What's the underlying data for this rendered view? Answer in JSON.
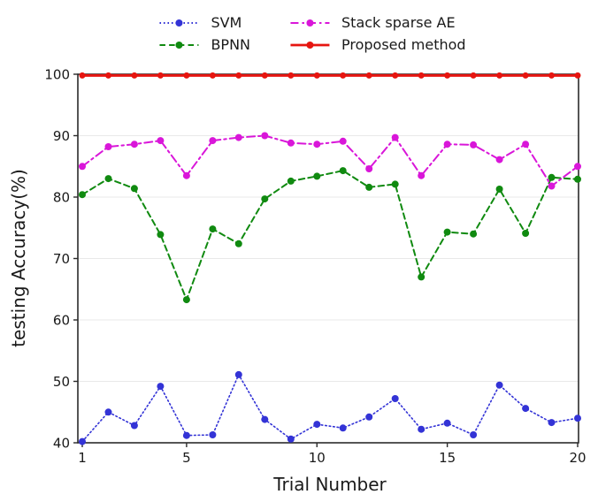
{
  "figure": {
    "background": "#ffffff"
  },
  "legend": {
    "position": "top-center",
    "items": [
      {
        "label": "SVM",
        "color": "#3333d6",
        "style": "dotted"
      },
      {
        "label": "BPNN",
        "color": "#108a10",
        "style": "dashed"
      },
      {
        "label": "Stack sparse AE",
        "color": "#d916d9",
        "style": "dashdot"
      },
      {
        "label": "Proposed method",
        "color": "#e61510",
        "style": "solid"
      }
    ]
  },
  "chart_data": {
    "type": "line",
    "title": "",
    "xlabel": "Trial Number",
    "ylabel": "testing Accuracy(%)",
    "xlim": [
      1,
      20
    ],
    "ylim": [
      40,
      100
    ],
    "xticks": [
      1,
      5,
      10,
      15,
      20
    ],
    "yticks": [
      40,
      50,
      60,
      70,
      80,
      90,
      100
    ],
    "grid": "horizontal",
    "grid_color": "#e9e9e9",
    "spine_color": "#2b2b2b",
    "legend_position": "top-center",
    "x": [
      1,
      2,
      3,
      4,
      5,
      6,
      7,
      8,
      9,
      10,
      11,
      12,
      13,
      14,
      15,
      16,
      17,
      18,
      19,
      20
    ],
    "series": [
      {
        "name": "SVM",
        "color": "#3333d6",
        "linestyle": "dotted",
        "linewidth": 1.6,
        "marker": "circle",
        "marker_size": 4,
        "values": [
          40.2,
          45.0,
          42.8,
          49.2,
          41.2,
          41.3,
          51.1,
          43.8,
          40.6,
          43.0,
          42.4,
          44.2,
          47.2,
          42.2,
          43.2,
          41.3,
          49.4,
          45.6,
          43.3,
          44.0
        ]
      },
      {
        "name": "BPNN",
        "color": "#108a10",
        "linestyle": "dashed",
        "linewidth": 2,
        "marker": "circle",
        "marker_size": 4,
        "values": [
          80.4,
          83.0,
          81.4,
          73.9,
          63.3,
          74.8,
          72.4,
          79.7,
          82.6,
          83.4,
          84.3,
          81.6,
          82.1,
          67.0,
          74.3,
          74.0,
          81.3,
          74.1,
          83.2,
          82.9
        ]
      },
      {
        "name": "Stack sparse AE",
        "color": "#d916d9",
        "linestyle": "dashdot",
        "linewidth": 2,
        "marker": "circle",
        "marker_size": 4,
        "values": [
          85.0,
          88.2,
          88.6,
          89.2,
          83.5,
          89.2,
          89.7,
          90.0,
          88.8,
          88.6,
          89.1,
          84.6,
          89.7,
          83.5,
          88.6,
          88.5,
          86.1,
          88.6,
          81.8,
          85.0
        ]
      },
      {
        "name": "Proposed method",
        "color": "#e61510",
        "linestyle": "solid",
        "linewidth": 3,
        "marker": "circle",
        "marker_size": 3.5,
        "values": [
          99.8,
          99.8,
          99.8,
          99.8,
          99.8,
          99.8,
          99.8,
          99.8,
          99.8,
          99.8,
          99.8,
          99.8,
          99.8,
          99.8,
          99.8,
          99.8,
          99.8,
          99.8,
          99.8,
          99.8
        ]
      }
    ]
  }
}
